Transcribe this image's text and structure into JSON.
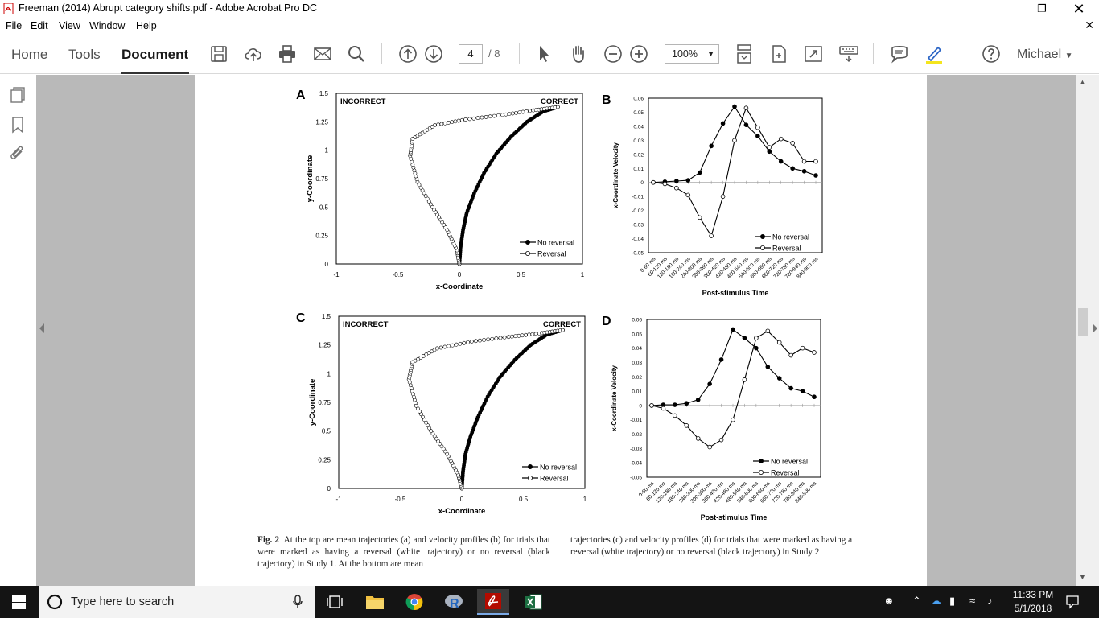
{
  "window": {
    "title": "Freeman (2014) Abrupt category shifts.pdf - Adobe Acrobat Pro DC"
  },
  "menu": {
    "items": [
      "File",
      "Edit",
      "View",
      "Window",
      "Help"
    ]
  },
  "toolbar": {
    "tabs": [
      "Home",
      "Tools",
      "Document"
    ],
    "active_tab": "Document",
    "page_current": "4",
    "page_total": "/ 8",
    "zoom": "100%",
    "user": "Michael"
  },
  "figure": {
    "panels": {
      "a": "A",
      "b": "B",
      "c": "C",
      "d": "D"
    },
    "traj_tick_x": [
      "-1",
      "-0.5",
      "0",
      "0.5",
      "1"
    ],
    "traj_tick_y": [
      "0",
      "0.25",
      "0.5",
      "0.75",
      "1",
      "1.25",
      "1.5"
    ],
    "traj_xlabel": "x-Coordinate",
    "traj_ylabel": "y-Coordinate",
    "traj_incorrect": "INCORRECT",
    "traj_correct": "CORRECT",
    "vel_tick_y": [
      "-0.05",
      "-0.04",
      "-0.03",
      "-0.02",
      "-0.01",
      "0",
      "0.01",
      "0.02",
      "0.03",
      "0.04",
      "0.05",
      "0.06"
    ],
    "vel_tick_x": [
      "0-60 ms",
      "60-120 ms",
      "120-180 ms",
      "180-240 ms",
      "240-300 ms",
      "300-360 ms",
      "360-420 ms",
      "420-480 ms",
      "480-540 ms",
      "540-600 ms",
      "600-660 ms",
      "660-720 ms",
      "720-780 ms",
      "780-840 ms",
      "840-900 ms"
    ],
    "vel_xlabel": "Post-stimulus Time",
    "vel_ylabel": "x-Coordinate Velocity",
    "legend": [
      "No reversal",
      "Reversal"
    ]
  },
  "chart_data": [
    {
      "type": "line",
      "panel": "A",
      "xlim": [
        -1,
        1
      ],
      "ylim": [
        0,
        1.5
      ],
      "series": [
        {
          "name": "No reversal",
          "marker": "filled",
          "x": [
            0,
            0.01,
            0.03,
            0.06,
            0.12,
            0.2,
            0.3,
            0.42,
            0.55,
            0.68,
            0.8
          ],
          "y": [
            0,
            0.15,
            0.3,
            0.45,
            0.62,
            0.8,
            0.97,
            1.12,
            1.25,
            1.34,
            1.38
          ]
        },
        {
          "name": "Reversal",
          "marker": "open",
          "x": [
            0,
            -0.02,
            -0.1,
            -0.22,
            -0.34,
            -0.4,
            -0.38,
            -0.2,
            0.05,
            0.35,
            0.6,
            0.8
          ],
          "y": [
            0,
            0.12,
            0.3,
            0.5,
            0.72,
            0.95,
            1.1,
            1.22,
            1.27,
            1.31,
            1.35,
            1.38
          ]
        }
      ]
    },
    {
      "type": "line",
      "panel": "B",
      "ylim": [
        -0.05,
        0.06
      ],
      "categories": [
        "0-60 ms",
        "60-120 ms",
        "120-180 ms",
        "180-240 ms",
        "240-300 ms",
        "300-360 ms",
        "360-420 ms",
        "420-480 ms",
        "480-540 ms",
        "540-600 ms",
        "600-660 ms",
        "660-720 ms",
        "720-780 ms",
        "780-840 ms",
        "840-900 ms"
      ],
      "series": [
        {
          "name": "No reversal",
          "marker": "filled",
          "values": [
            0,
            0.0005,
            0.001,
            0.0015,
            0.007,
            0.026,
            0.042,
            0.054,
            0.041,
            0.033,
            0.022,
            0.015,
            0.01,
            0.008,
            0.005
          ]
        },
        {
          "name": "Reversal",
          "marker": "open",
          "values": [
            0,
            -0.001,
            -0.004,
            -0.009,
            -0.025,
            -0.038,
            -0.01,
            0.03,
            0.053,
            0.039,
            0.025,
            0.031,
            0.028,
            0.015,
            0.015
          ]
        }
      ]
    },
    {
      "type": "line",
      "panel": "C",
      "xlim": [
        -1,
        1
      ],
      "ylim": [
        0,
        1.5
      ],
      "series": [
        {
          "name": "No reversal",
          "marker": "filled",
          "x": [
            0,
            0.01,
            0.03,
            0.07,
            0.13,
            0.21,
            0.31,
            0.43,
            0.56,
            0.69,
            0.82
          ],
          "y": [
            0,
            0.15,
            0.3,
            0.45,
            0.62,
            0.8,
            0.97,
            1.12,
            1.25,
            1.34,
            1.38
          ]
        },
        {
          "name": "Reversal",
          "marker": "open",
          "x": [
            0,
            -0.03,
            -0.12,
            -0.25,
            -0.37,
            -0.43,
            -0.4,
            -0.2,
            0.08,
            0.38,
            0.63,
            0.82
          ],
          "y": [
            0,
            0.12,
            0.3,
            0.5,
            0.72,
            0.95,
            1.1,
            1.22,
            1.28,
            1.32,
            1.35,
            1.38
          ]
        }
      ]
    },
    {
      "type": "line",
      "panel": "D",
      "ylim": [
        -0.05,
        0.06
      ],
      "categories": [
        "0-60 ms",
        "60-120 ms",
        "120-180 ms",
        "180-240 ms",
        "240-300 ms",
        "300-360 ms",
        "360-420 ms",
        "420-480 ms",
        "480-540 ms",
        "540-600 ms",
        "600-660 ms",
        "660-720 ms",
        "720-780 ms",
        "780-840 ms",
        "840-900 ms"
      ],
      "series": [
        {
          "name": "No reversal",
          "marker": "filled",
          "values": [
            0,
            0.0005,
            0.0005,
            0.0015,
            0.004,
            0.015,
            0.032,
            0.053,
            0.047,
            0.04,
            0.027,
            0.019,
            0.012,
            0.01,
            0.006
          ]
        },
        {
          "name": "Reversal",
          "marker": "open",
          "values": [
            0,
            -0.002,
            -0.007,
            -0.014,
            -0.023,
            -0.029,
            -0.024,
            -0.01,
            0.018,
            0.047,
            0.052,
            0.044,
            0.035,
            0.04,
            0.037
          ]
        }
      ]
    }
  ],
  "caption": {
    "col1_label": "Fig. 2",
    "col1_text": "At the top are mean trajectories (a) and velocity profiles (b) for trials that were marked as having a reversal (white trajectory) or no reversal (black trajectory) in Study 1. At the bottom are mean",
    "col2_text": "trajectories (c) and velocity profiles (d) for trials that were marked as having a reversal (white trajectory) or no reversal (black trajectory) in Study 2"
  },
  "taskbar": {
    "search_placeholder": "Type here to search",
    "time": "11:33 PM",
    "date": "5/1/2018"
  }
}
